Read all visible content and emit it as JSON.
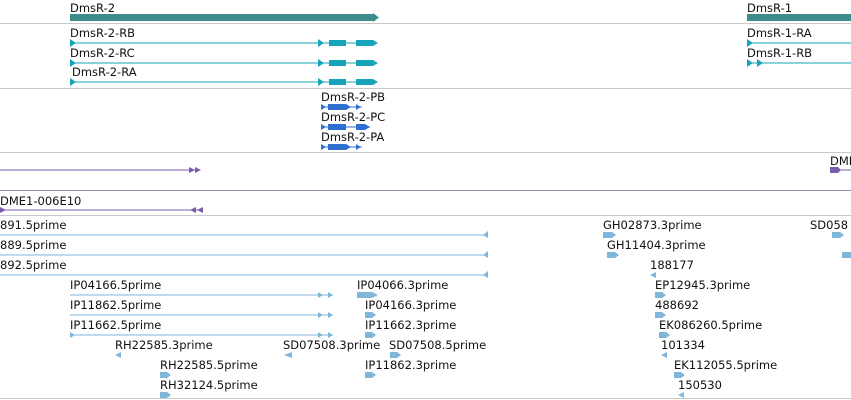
{
  "colors": {
    "gene": "#3d8c8c",
    "transcript": "#17a3b8",
    "protein": "#2f6fd1",
    "feature": "#7a5cab",
    "est": "#7fb6da",
    "separator": "#c8c8c8"
  },
  "genes": {
    "dmsr2": "DmsR-2",
    "dmsr1": "DmsR-1"
  },
  "transcripts": {
    "dmsr2_rb": "DmsR-2-RB",
    "dmsr2_rc": "DmsR-2-RC",
    "dmsr2_ra": "DmsR-2-RA",
    "dmsr1_ra": "DmsR-1-RA",
    "dmsr1_rb": "DmsR-1-RB"
  },
  "proteins": {
    "pb": "DmsR-2-PB",
    "pc": "DmsR-2-PC",
    "pa": "DmsR-2-PA"
  },
  "features": {
    "dmi": "DMI",
    "dme1": "DME1-006E10"
  },
  "ests": [
    "891.5prime",
    "889.5prime",
    "892.5prime",
    "IP04166.5prime",
    "IP11862.5prime",
    "IP11662.5prime",
    "RH22585.3prime",
    "SD07508.3prime",
    "RH22585.5prime",
    "RH32124.5prime",
    "IP04066.3prime",
    "IP04166.3prime",
    "IP11662.3prime",
    "SD07508.5prime",
    "IP11862.3prime",
    "GH02873.3prime",
    "GH11404.3prime",
    "188177",
    "EP12945.3prime",
    "488692",
    "EK086260.5prime",
    "101334",
    "EK112055.5prime",
    "150530",
    "SD058"
  ]
}
